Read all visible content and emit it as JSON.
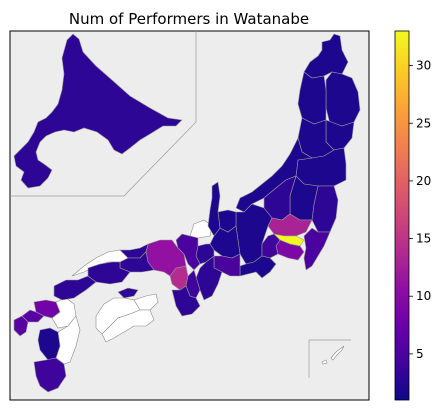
{
  "chart_data": {
    "type": "map",
    "title": "Num of Performers in Watanabe",
    "colormap": "plasma",
    "colorbar": {
      "min": 1,
      "max": 33,
      "ticks": [
        5,
        10,
        15,
        20,
        25,
        30
      ]
    },
    "regions": [
      {
        "name": "Hokkaido",
        "value": 3
      },
      {
        "name": "Aomori",
        "value": 2
      },
      {
        "name": "Iwate",
        "value": 2
      },
      {
        "name": "Akita",
        "value": 2
      },
      {
        "name": "Miyagi",
        "value": 2
      },
      {
        "name": "Yamagata",
        "value": 2
      },
      {
        "name": "Fukushima",
        "value": 2
      },
      {
        "name": "Niigata",
        "value": 2
      },
      {
        "name": "Ibaraki",
        "value": 3
      },
      {
        "name": "Tochigi",
        "value": 2
      },
      {
        "name": "Gunma",
        "value": 3
      },
      {
        "name": "Saitama",
        "value": 13
      },
      {
        "name": "Tokyo",
        "value": 33
      },
      {
        "name": "Chiba",
        "value": 5
      },
      {
        "name": "Kanagawa",
        "value": 9
      },
      {
        "name": "Nagano",
        "value": 2
      },
      {
        "name": "Yamanashi",
        "value": 4
      },
      {
        "name": "Shizuoka",
        "value": 2
      },
      {
        "name": "Gifu",
        "value": 2
      },
      {
        "name": "Aichi",
        "value": 5
      },
      {
        "name": "Mie",
        "value": 3
      },
      {
        "name": "Toyama",
        "value": 2
      },
      {
        "name": "Ishikawa",
        "value": 2
      },
      {
        "name": "Shiga",
        "value": 3
      },
      {
        "name": "Kyoto",
        "value": 5
      },
      {
        "name": "Osaka",
        "value": 14
      },
      {
        "name": "Hyogo",
        "value": 11
      },
      {
        "name": "Nara",
        "value": 4
      },
      {
        "name": "Wakayama",
        "value": 3
      },
      {
        "name": "Tottori",
        "value": 3
      },
      {
        "name": "Okayama",
        "value": 3
      },
      {
        "name": "Hiroshima",
        "value": 3
      },
      {
        "name": "Yamaguchi",
        "value": 3
      },
      {
        "name": "Kagawa",
        "value": 3
      },
      {
        "name": "Fukuoka",
        "value": 8
      },
      {
        "name": "Saga",
        "value": 6
      },
      {
        "name": "Nagasaki",
        "value": 6
      },
      {
        "name": "Kumamoto",
        "value": 2
      },
      {
        "name": "Kagoshima",
        "value": 4
      }
    ],
    "no_data": [
      "Fukui",
      "Shimane",
      "Tokushima",
      "Ehime",
      "Kochi",
      "Oita",
      "Miyazaki",
      "Okinawa"
    ]
  }
}
